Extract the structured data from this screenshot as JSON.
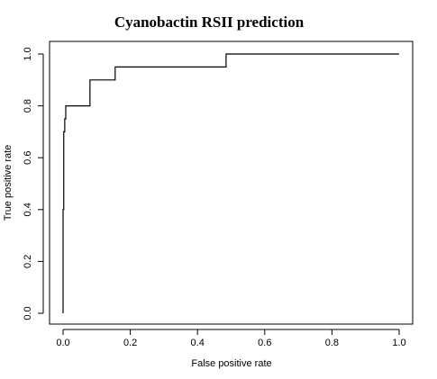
{
  "chart_data": {
    "type": "line",
    "title": "Cyanobactin RSII prediction",
    "xlabel": "False positive rate",
    "ylabel": "True positive rate",
    "xlim": [
      0,
      1
    ],
    "ylim": [
      0,
      1
    ],
    "xticks": [
      0.0,
      0.2,
      0.4,
      0.6,
      0.8,
      1.0
    ],
    "xtick_labels": [
      "0.0",
      "0.2",
      "0.4",
      "0.6",
      "0.8",
      "1.0"
    ],
    "yticks": [
      0.0,
      0.2,
      0.4,
      0.6,
      0.8,
      1.0
    ],
    "ytick_labels": [
      "0.0",
      "0.2",
      "0.4",
      "0.6",
      "0.8",
      "1.0"
    ],
    "grid": false,
    "legend": "none",
    "line_color": "#000000",
    "series": [
      {
        "x": [
          0.0,
          0.0,
          0.002,
          0.002,
          0.005,
          0.005,
          0.008,
          0.008,
          0.08,
          0.08,
          0.155,
          0.155,
          0.485,
          0.485,
          1.0
        ],
        "y": [
          0.0,
          0.4,
          0.4,
          0.7,
          0.7,
          0.75,
          0.75,
          0.8,
          0.8,
          0.9,
          0.9,
          0.95,
          0.95,
          1.0,
          1.0
        ]
      }
    ]
  }
}
